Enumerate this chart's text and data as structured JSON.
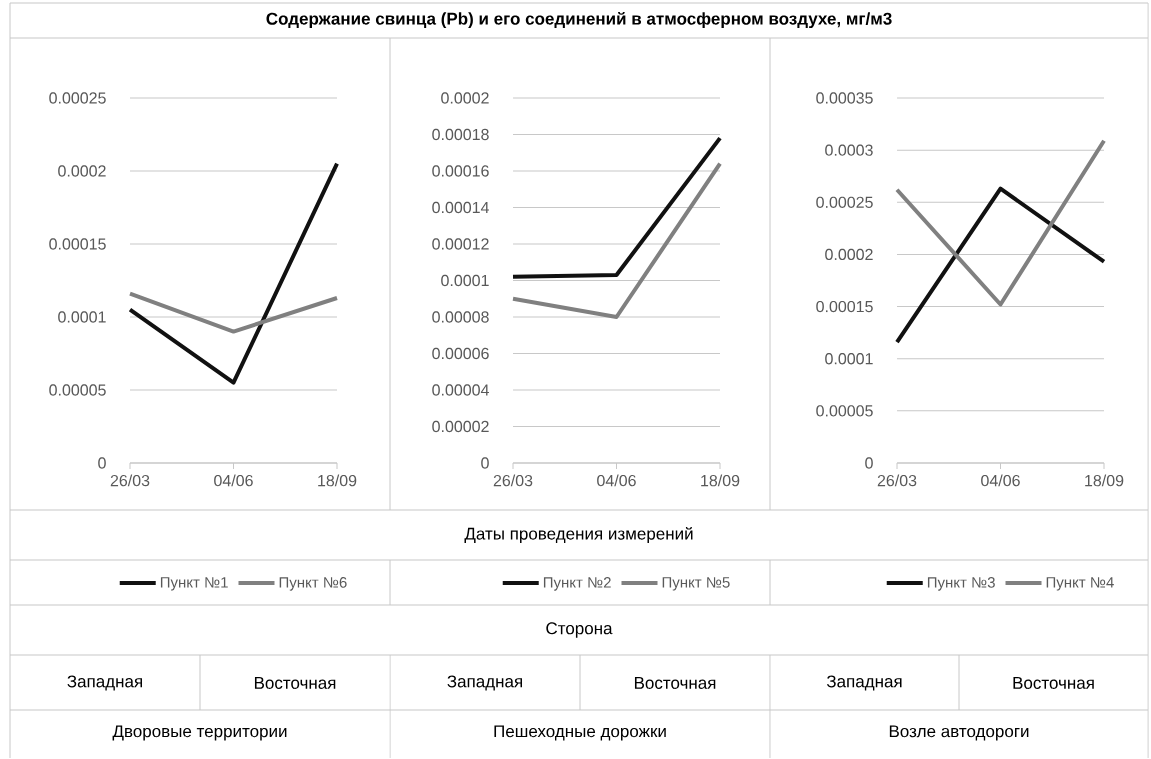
{
  "chart_data": [
    {
      "type": "line",
      "categories": [
        "26/03",
        "04/06",
        "18/09"
      ],
      "series": [
        {
          "name": "Пункт №1",
          "color": "#111111",
          "values": [
            0.000105,
            5.5e-05,
            0.000205
          ]
        },
        {
          "name": "Пункт №6",
          "color": "#808080",
          "values": [
            0.000116,
            9e-05,
            0.000113
          ]
        }
      ],
      "ylim": [
        0,
        0.00025
      ],
      "yticks": [
        0,
        {
          "value": 5e-05,
          "label": "0.00005"
        },
        0.0001,
        0.00015,
        0.0002,
        0.00025
      ],
      "annotations": [
        "Западная",
        "Восточная",
        "Дворовые территории"
      ],
      "grid": "y",
      "legend": "bottom",
      "marker": "none",
      "line_style": "solid"
    },
    {
      "type": "line",
      "title": "Содержание свинца (Pb) и его соединений в атмосферном воздухе, мг/м3",
      "xlabel": "Даты проведения измерений",
      "categories": [
        "26/03",
        "04/06",
        "18/09"
      ],
      "series": [
        {
          "name": "Пункт №2",
          "color": "#111111",
          "values": [
            0.000102,
            0.000103,
            0.000178
          ]
        },
        {
          "name": "Пункт №5",
          "color": "#808080",
          "values": [
            9e-05,
            8e-05,
            0.000164
          ]
        }
      ],
      "ylim": [
        0,
        0.0002
      ],
      "yticks": [
        0,
        {
          "value": 2e-05,
          "label": "0.00002"
        },
        {
          "value": 4e-05,
          "label": "0.00004"
        },
        {
          "value": 6e-05,
          "label": "0.00006"
        },
        {
          "value": 8e-05,
          "label": "0.00008"
        },
        0.0001,
        0.00012,
        0.00014,
        0.00016,
        0.00018,
        0.0002
      ],
      "annotations": [
        "Сторона",
        "Западная",
        "Восточная",
        "Пешеходные дорожки"
      ],
      "grid": "y",
      "legend": "bottom",
      "marker": "none",
      "line_style": "solid"
    },
    {
      "type": "line",
      "categories": [
        "26/03",
        "04/06",
        "18/09"
      ],
      "series": [
        {
          "name": "Пункт №3",
          "color": "#111111",
          "values": [
            0.000116,
            0.000263,
            0.000193
          ]
        },
        {
          "name": "Пункт №4",
          "color": "#808080",
          "values": [
            0.000262,
            0.000152,
            0.000309
          ]
        }
      ],
      "ylim": [
        0,
        0.00035
      ],
      "yticks": [
        0,
        {
          "value": 5e-05,
          "label": "0.00005"
        },
        0.0001,
        0.00015,
        0.0002,
        0.00025,
        0.0003,
        0.00035
      ],
      "annotations": [
        "Западная",
        "Восточная",
        "Возле автодороги"
      ],
      "grid": "y",
      "legend": "bottom",
      "marker": "none",
      "line_style": "solid"
    }
  ]
}
